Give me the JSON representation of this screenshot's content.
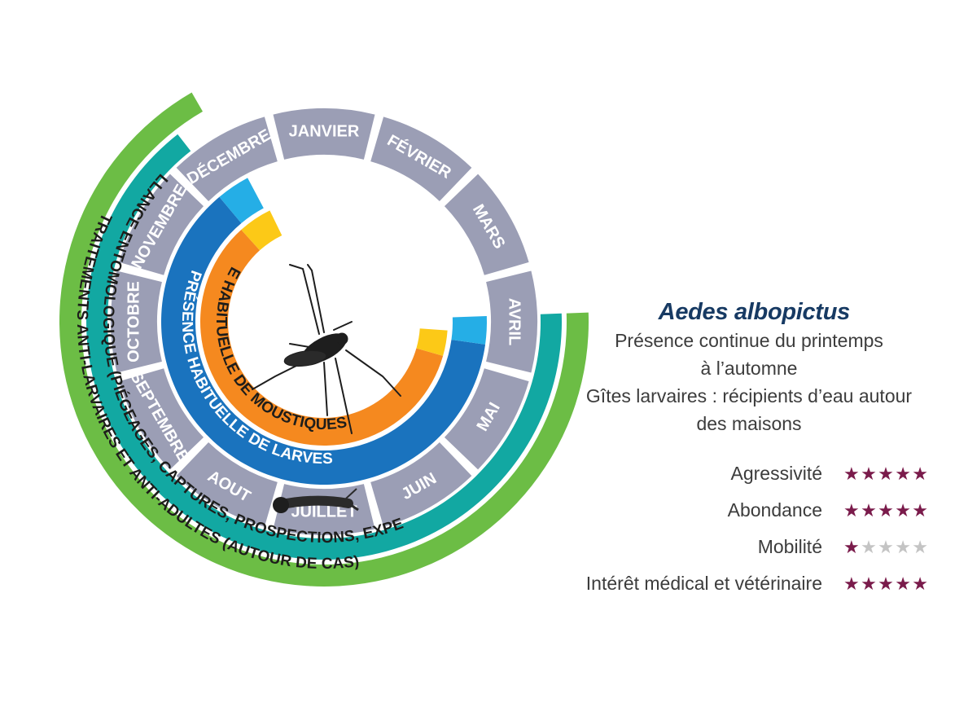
{
  "months": [
    "JANVIER",
    "FÉVRIER",
    "MARS",
    "AVRIL",
    "MAI",
    "JUIN",
    "JUILLET",
    "AOUT",
    "SEPTEMBRE",
    "OCTOBRE",
    "NOVEMBRE",
    "DÉCEMBRE"
  ],
  "rings": {
    "adults": "PRÉSENCE HABITUELLE DE MOUSTIQUES ADULTES",
    "larvae": "PRÉSENCE HABITUELLE DE LARVES",
    "surveillance": "SURVEILLANCE ENTOMOLOGIQUE (PIÉGEAGES, CAPTURES, PROSPECTIONS, EXPERTISES)",
    "treatments": "TRAITEMENTS ANTI-LARVAIRES ET ANTI-ADULTES (AUTOUR DE CAS)"
  },
  "colors": {
    "month_ring": "#9b9eb5",
    "adults": "#f5891f",
    "adults_edge": "#fcc917",
    "larvae": "#1a73be",
    "larvae_edge": "#25aee6",
    "surveillance": "#12a8a2",
    "treatments": "#6cbd45",
    "star_on": "#7a1b4b",
    "star_off": "#c4c4c4",
    "species": "#173a63"
  },
  "species": {
    "name": "Aedes albopictus",
    "description": [
      "Présence continue du printemps",
      "à l’automne",
      "Gîtes larvaires : récipients d’eau autour",
      "des maisons"
    ]
  },
  "ratings": [
    {
      "label": "Agressivité",
      "stars": 5,
      "max": 5
    },
    {
      "label": "Abondance",
      "stars": 5,
      "max": 5
    },
    {
      "label": "Mobilité",
      "stars": 1,
      "max": 5
    },
    {
      "label": "Intérêt médical et vétérinaire",
      "stars": 5,
      "max": 5
    }
  ]
}
